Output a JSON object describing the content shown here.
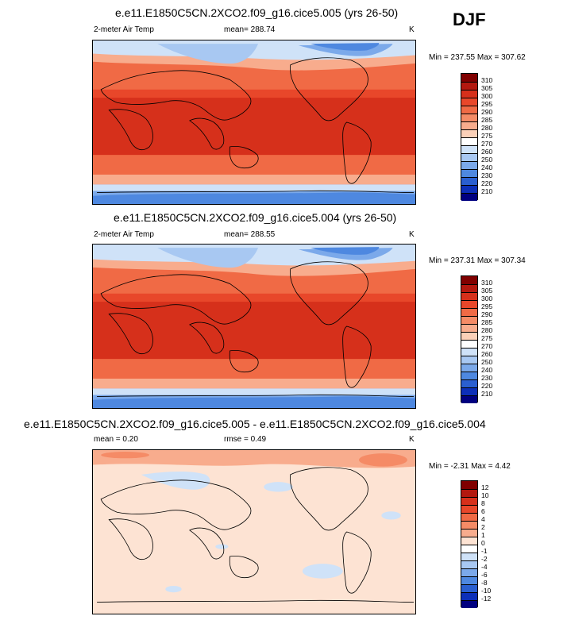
{
  "season": "DJF",
  "panels": [
    {
      "title": "e.e11.E1850C5CN.2XCO2.f09_g16.cice5.005 (yrs 26-50)",
      "left": "2-meter Air Temp",
      "center": "mean= 288.74",
      "units": "K",
      "minmax": "Min = 237.55 Max = 307.62",
      "colorbar": {
        "labels": [
          "310",
          "305",
          "300",
          "295",
          "290",
          "285",
          "280",
          "275",
          "270",
          "260",
          "250",
          "240",
          "230",
          "220",
          "210"
        ],
        "colors": [
          "#800000",
          "#b3180f",
          "#d6301b",
          "#e8472a",
          "#f06a45",
          "#f58b66",
          "#f8ac8d",
          "#fbd0b8",
          "#ffffff",
          "#cfe2f8",
          "#a8c8f2",
          "#7ba9ea",
          "#4e88e0",
          "#2a5fd0",
          "#0c2fb8",
          "#000080"
        ]
      }
    },
    {
      "title": "e.e11.E1850C5CN.2XCO2.f09_g16.cice5.004 (yrs 26-50)",
      "left": "2-meter Air Temp",
      "center": "mean= 288.55",
      "units": "K",
      "minmax": "Min = 237.31 Max = 307.34",
      "colorbar": {
        "labels": [
          "310",
          "305",
          "300",
          "295",
          "290",
          "285",
          "280",
          "275",
          "270",
          "260",
          "250",
          "240",
          "230",
          "220",
          "210"
        ],
        "colors": [
          "#800000",
          "#b3180f",
          "#d6301b",
          "#e8472a",
          "#f06a45",
          "#f58b66",
          "#f8ac8d",
          "#fbd0b8",
          "#ffffff",
          "#cfe2f8",
          "#a8c8f2",
          "#7ba9ea",
          "#4e88e0",
          "#2a5fd0",
          "#0c2fb8",
          "#000080"
        ]
      }
    },
    {
      "title": "e.e11.E1850C5CN.2XCO2.f09_g16.cice5.005 - e.e11.E1850C5CN.2XCO2.f09_g16.cice5.004",
      "left": "mean =   0.20",
      "center": "rmse =   0.49",
      "units": "K",
      "minmax": "Min =  -2.31 Max =   4.42",
      "colorbar": {
        "labels": [
          "12",
          "10",
          "8",
          "6",
          "4",
          "2",
          "1",
          "0",
          "-1",
          "-2",
          "-4",
          "-6",
          "-8",
          "-10",
          "-12"
        ],
        "colors": [
          "#800000",
          "#b3180f",
          "#d6301b",
          "#e8472a",
          "#f06a45",
          "#f58b66",
          "#f8ac8d",
          "#fde3d3",
          "#ffffff",
          "#cfe2f8",
          "#a8c8f2",
          "#7ba9ea",
          "#4e88e0",
          "#2a5fd0",
          "#0c2fb8",
          "#000080"
        ]
      }
    }
  ]
}
